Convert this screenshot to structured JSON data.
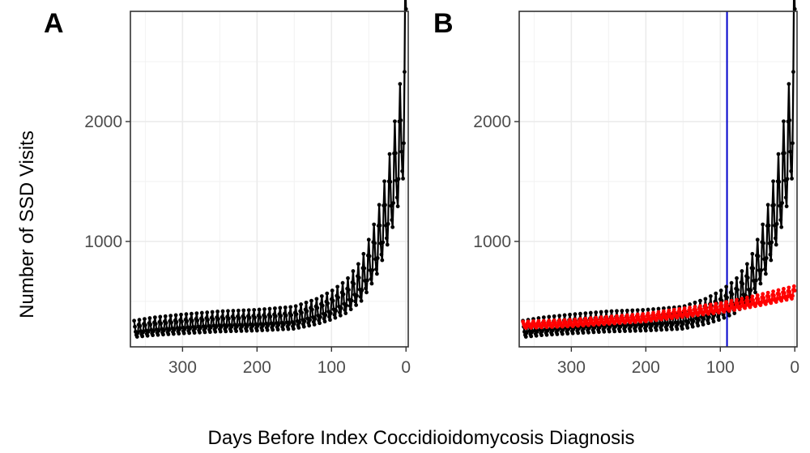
{
  "figure": {
    "xlabel": "Days Before Index Coccidioidomycosis Diagnosis",
    "ylabel": "Number of SSD Visits"
  },
  "chart_data": [
    {
      "type": "line",
      "panel": "A",
      "xlabel": "Days Before Index Coccidioidomycosis Diagnosis",
      "ylabel": "Number of SSD Visits",
      "xlim": [
        370,
        -3
      ],
      "ylim": [
        120,
        2920
      ],
      "x_reversed": true,
      "x_ticks": [
        300,
        200,
        100,
        0
      ],
      "y_ticks": [
        1000,
        2000
      ],
      "grid": true,
      "series": [
        {
          "color": "#000000",
          "markers": true,
          "anchor_points": [
            [
              365,
              260
            ],
            [
              340,
              280
            ],
            [
              300,
              300
            ],
            [
              250,
              320
            ],
            [
              200,
              330
            ],
            [
              150,
              350
            ],
            [
              120,
              400
            ],
            [
              100,
              450
            ],
            [
              80,
              520
            ],
            [
              60,
              650
            ],
            [
              50,
              780
            ],
            [
              40,
              920
            ],
            [
              30,
              1130
            ],
            [
              20,
              1380
            ],
            [
              10,
              1700
            ],
            [
              5,
              1900
            ],
            [
              2,
              2100
            ],
            [
              1,
              2500
            ],
            [
              0,
              2660
            ]
          ],
          "weekly_cycle_amplitude_fraction": 0.3
        }
      ]
    },
    {
      "type": "line",
      "panel": "B",
      "xlabel": "Days Before Index Coccidioidomycosis Diagnosis",
      "ylabel": "Number of SSD Visits",
      "xlim": [
        370,
        -3
      ],
      "ylim": [
        120,
        2920
      ],
      "x_reversed": true,
      "x_ticks": [
        300,
        200,
        100,
        0
      ],
      "y_ticks": [
        1000,
        2000
      ],
      "grid": true,
      "vline": {
        "x": 91,
        "color": "#0000cc"
      },
      "series": [
        {
          "color": "#000000",
          "markers": true,
          "anchor_points": [
            [
              365,
              260
            ],
            [
              340,
              280
            ],
            [
              300,
              300
            ],
            [
              250,
              320
            ],
            [
              200,
              330
            ],
            [
              150,
              350
            ],
            [
              120,
              400
            ],
            [
              100,
              450
            ],
            [
              80,
              520
            ],
            [
              60,
              650
            ],
            [
              50,
              780
            ],
            [
              40,
              920
            ],
            [
              30,
              1130
            ],
            [
              20,
              1380
            ],
            [
              10,
              1700
            ],
            [
              5,
              1900
            ],
            [
              2,
              2100
            ],
            [
              1,
              2500
            ],
            [
              0,
              2660
            ]
          ],
          "weekly_cycle_amplitude_fraction": 0.3
        },
        {
          "color": "#ff0000",
          "markers": true,
          "anchor_points": [
            [
              365,
              300
            ],
            [
              300,
              315
            ],
            [
              200,
              360
            ],
            [
              100,
              440
            ],
            [
              50,
              500
            ],
            [
              0,
              570
            ]
          ],
          "weekly_cycle_amplitude_fraction": 0.1
        }
      ]
    }
  ]
}
